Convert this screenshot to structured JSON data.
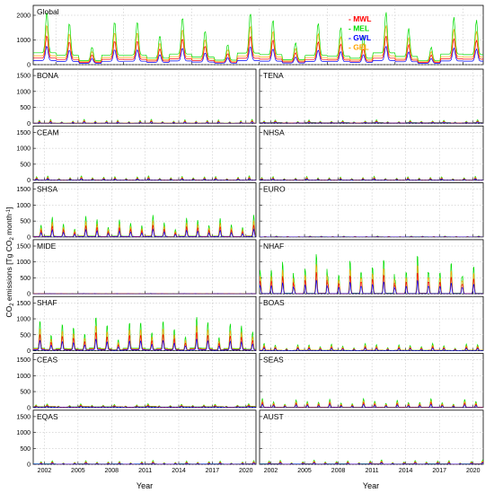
{
  "figure": {
    "ylabel_main": "CO",
    "ylabel_sub": "2",
    "ylabel_mid": " emissions [Tg CO",
    "ylabel_sub2": "2",
    "ylabel_tail": " month",
    "ylabel_sup": "-1",
    "ylabel_end": "]",
    "xlabel": "Year",
    "colors": {
      "MWL": "#ff0000",
      "MEL": "#00dd00",
      "GWL": "#0000ff",
      "GEL": "#ffa500"
    }
  },
  "chart_data": {
    "type": "line",
    "time_range": [
      2001,
      2020.9
    ],
    "xticks": [
      "2002",
      "2005",
      "2008",
      "2011",
      "2014",
      "2017",
      "2020"
    ],
    "yticks_global": [
      "0",
      "1000",
      "2000"
    ],
    "yticks_region": [
      "0",
      "500",
      "1000",
      "1500"
    ],
    "ylim_global": [
      0,
      2400
    ],
    "ylim_region": [
      0,
      1700
    ],
    "legend": {
      "placement": "top-right",
      "entries": [
        "MWL",
        "MEL",
        "GWL",
        "GEL"
      ]
    },
    "series_ratio": {
      "MWL": 0.55,
      "MEL": 1.0,
      "GWL": 0.35,
      "GEL": 0.75
    },
    "panels": [
      {
        "name": "Global",
        "peak": 2100,
        "base": 0.22,
        "phase": 0.6
      },
      {
        "name": "BONA",
        "peak": 120,
        "base": 0.05,
        "phase": 0.55
      },
      {
        "name": "TENA",
        "peak": 100,
        "base": 0.25,
        "phase": 0.4
      },
      {
        "name": "CEAM",
        "peak": 130,
        "base": 0.05,
        "phase": 0.3
      },
      {
        "name": "NHSA",
        "peak": 110,
        "base": 0.05,
        "phase": 0.2
      },
      {
        "name": "SHSA",
        "peak": 650,
        "base": 0.05,
        "phase": 0.7
      },
      {
        "name": "EURO",
        "peak": 30,
        "base": 0.2,
        "phase": 0.5
      },
      {
        "name": "MIDE",
        "peak": 15,
        "base": 0.3,
        "phase": 0.5
      },
      {
        "name": "NHAF",
        "peak": 1150,
        "base": 0.02,
        "phase": 0.05
      },
      {
        "name": "SHAF",
        "peak": 1050,
        "base": 0.08,
        "phase": 0.6
      },
      {
        "name": "BOAS",
        "peak": 220,
        "base": 0.08,
        "phase": 0.4
      },
      {
        "name": "CEAS",
        "peak": 110,
        "base": 0.3,
        "phase": 0.25
      },
      {
        "name": "SEAS",
        "peak": 260,
        "base": 0.05,
        "phase": 0.25
      },
      {
        "name": "EQAS",
        "peak": 110,
        "base": 0.15,
        "phase": 0.7
      },
      {
        "name": "AUST",
        "peak": 130,
        "base": 0.15,
        "phase": 0.85
      }
    ]
  }
}
